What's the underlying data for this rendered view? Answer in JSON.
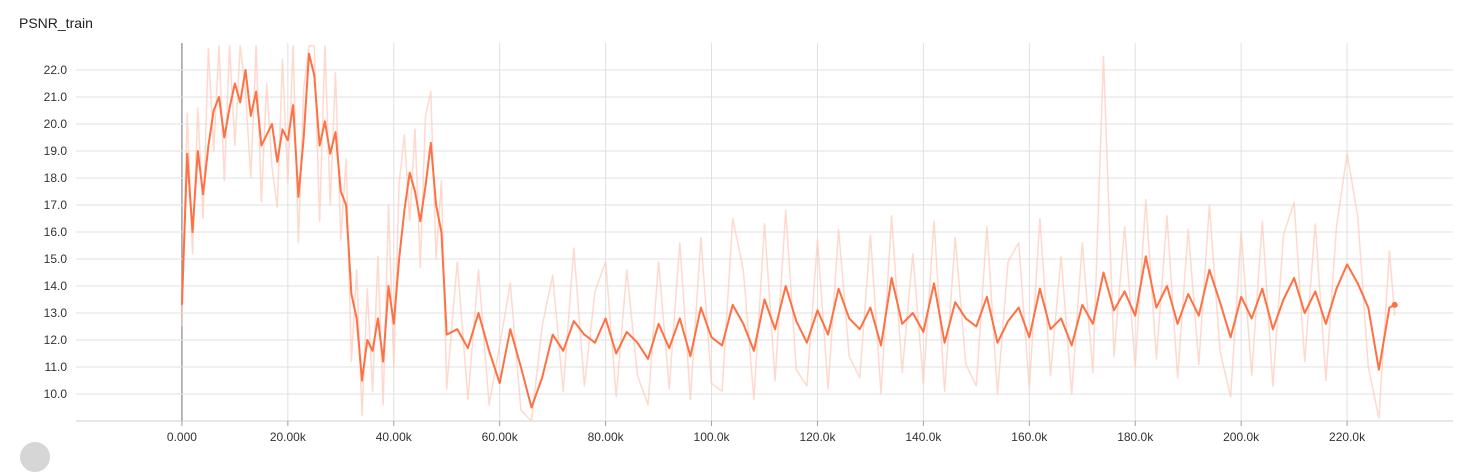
{
  "chart_data": {
    "type": "line",
    "title": "PSNR_train",
    "xlabel": "",
    "ylabel": "",
    "xlim": [
      -20000,
      240000
    ],
    "ylim": [
      9.0,
      23.0
    ],
    "grid": true,
    "x_ticks": [
      0,
      20000,
      40000,
      60000,
      80000,
      100000,
      120000,
      140000,
      160000,
      180000,
      200000,
      220000
    ],
    "x_tick_labels": [
      "0.000",
      "20.00k",
      "40.00k",
      "60.00k",
      "80.00k",
      "100.0k",
      "120.0k",
      "140.0k",
      "160.0k",
      "180.0k",
      "200.0k",
      "220.0k"
    ],
    "y_ticks": [
      10,
      11,
      12,
      13,
      14,
      15,
      16,
      17,
      18,
      19,
      20,
      21,
      22
    ],
    "y_tick_labels": [
      "10.0",
      "11.0",
      "12.0",
      "13.0",
      "14.0",
      "15.0",
      "16.0",
      "17.0",
      "18.0",
      "19.0",
      "20.0",
      "21.0",
      "22.0"
    ],
    "colors": {
      "smoothed": "#ff7043",
      "raw": "#ffccbc",
      "grid": "#e0e0e0",
      "origin_line": "#9e9e9e"
    },
    "series": [
      {
        "role": "smoothed",
        "x": [
          0,
          1000,
          2000,
          3000,
          4000,
          5000,
          6000,
          7000,
          8000,
          9000,
          10000,
          11000,
          12000,
          13000,
          14000,
          15000,
          16000,
          17000,
          18000,
          19000,
          20000,
          21000,
          22000,
          23000,
          24000,
          25000,
          26000,
          27000,
          28000,
          29000,
          30000,
          31000,
          32000,
          33000,
          34000,
          35000,
          36000,
          37000,
          38000,
          39000,
          40000,
          41000,
          42000,
          43000,
          44000,
          45000,
          46000,
          47000,
          48000,
          49000,
          50000,
          52000,
          54000,
          56000,
          58000,
          60000,
          62000,
          64000,
          66000,
          68000,
          70000,
          72000,
          74000,
          76000,
          78000,
          80000,
          82000,
          84000,
          86000,
          88000,
          90000,
          92000,
          94000,
          96000,
          98000,
          100000,
          102000,
          104000,
          106000,
          108000,
          110000,
          112000,
          114000,
          116000,
          118000,
          120000,
          122000,
          124000,
          126000,
          128000,
          130000,
          132000,
          134000,
          136000,
          138000,
          140000,
          142000,
          144000,
          146000,
          148000,
          150000,
          152000,
          154000,
          156000,
          158000,
          160000,
          162000,
          164000,
          166000,
          168000,
          170000,
          172000,
          174000,
          176000,
          178000,
          180000,
          182000,
          184000,
          186000,
          188000,
          190000,
          192000,
          194000,
          196000,
          198000,
          200000,
          202000,
          204000,
          206000,
          208000,
          210000,
          212000,
          214000,
          216000,
          218000,
          220000,
          222000,
          224000,
          226000,
          228000,
          229000
        ],
        "y": [
          13.3,
          18.9,
          16.0,
          19.0,
          17.4,
          19.2,
          20.5,
          21.0,
          19.5,
          20.6,
          21.5,
          20.8,
          22.0,
          20.3,
          21.2,
          19.2,
          19.6,
          20.0,
          18.6,
          19.8,
          19.4,
          20.7,
          17.3,
          19.5,
          22.6,
          21.8,
          19.2,
          20.1,
          18.9,
          19.7,
          17.5,
          17.0,
          13.7,
          12.8,
          10.5,
          12.0,
          11.6,
          12.8,
          11.2,
          14.0,
          12.6,
          15.0,
          16.8,
          18.2,
          17.5,
          16.4,
          17.7,
          19.3,
          17.0,
          16.0,
          12.2,
          12.4,
          11.7,
          13.0,
          11.6,
          10.4,
          12.4,
          11.0,
          9.5,
          10.6,
          12.2,
          11.6,
          12.7,
          12.2,
          11.9,
          12.8,
          11.5,
          12.3,
          11.9,
          11.3,
          12.6,
          11.7,
          12.8,
          11.4,
          13.2,
          12.1,
          11.8,
          13.3,
          12.6,
          11.6,
          13.5,
          12.4,
          14.0,
          12.7,
          11.9,
          13.1,
          12.2,
          13.9,
          12.8,
          12.4,
          13.2,
          11.8,
          14.3,
          12.6,
          13.0,
          12.3,
          14.1,
          11.9,
          13.4,
          12.8,
          12.5,
          13.6,
          11.9,
          12.7,
          13.2,
          12.1,
          13.9,
          12.4,
          12.8,
          11.8,
          13.3,
          12.6,
          14.5,
          13.1,
          13.8,
          12.9,
          15.1,
          13.2,
          14.0,
          12.6,
          13.7,
          12.9,
          14.6,
          13.4,
          12.1,
          13.6,
          12.8,
          13.9,
          12.4,
          13.5,
          14.3,
          13.0,
          13.8,
          12.6,
          13.9,
          14.8,
          14.1,
          13.2,
          10.9,
          13.2,
          13.3
        ]
      },
      {
        "role": "raw",
        "x": [
          0,
          1000,
          2000,
          3000,
          4000,
          5000,
          6000,
          7000,
          8000,
          9000,
          10000,
          11000,
          12000,
          13000,
          14000,
          15000,
          16000,
          17000,
          18000,
          19000,
          20000,
          21000,
          22000,
          23000,
          24000,
          25000,
          26000,
          27000,
          28000,
          29000,
          30000,
          31000,
          32000,
          33000,
          34000,
          35000,
          36000,
          37000,
          38000,
          39000,
          40000,
          41000,
          42000,
          43000,
          44000,
          45000,
          46000,
          47000,
          48000,
          49000,
          50000,
          52000,
          54000,
          56000,
          58000,
          60000,
          62000,
          64000,
          66000,
          68000,
          70000,
          72000,
          74000,
          76000,
          78000,
          80000,
          82000,
          84000,
          86000,
          88000,
          90000,
          92000,
          94000,
          96000,
          98000,
          100000,
          102000,
          104000,
          106000,
          108000,
          110000,
          112000,
          114000,
          116000,
          118000,
          120000,
          122000,
          124000,
          126000,
          128000,
          130000,
          132000,
          134000,
          136000,
          138000,
          140000,
          142000,
          144000,
          146000,
          148000,
          150000,
          152000,
          154000,
          156000,
          158000,
          160000,
          162000,
          164000,
          166000,
          168000,
          170000,
          172000,
          174000,
          176000,
          178000,
          180000,
          182000,
          184000,
          186000,
          188000,
          190000,
          192000,
          194000,
          196000,
          198000,
          200000,
          202000,
          204000,
          206000,
          208000,
          210000,
          212000,
          214000,
          216000,
          218000,
          220000,
          222000,
          224000,
          226000,
          228000,
          229000
        ],
        "y": [
          12.5,
          20.4,
          15.2,
          20.6,
          16.5,
          22.8,
          19.0,
          22.9,
          17.9,
          22.9,
          19.2,
          22.9,
          21.2,
          18.0,
          22.9,
          17.1,
          21.5,
          18.4,
          16.9,
          22.4,
          17.8,
          22.9,
          15.6,
          21.3,
          22.9,
          22.9,
          16.4,
          22.9,
          17.0,
          21.9,
          15.7,
          18.7,
          11.2,
          14.6,
          9.2,
          13.9,
          10.1,
          15.1,
          9.6,
          17.0,
          11.0,
          17.8,
          19.6,
          16.4,
          19.8,
          14.7,
          20.3,
          21.2,
          15.0,
          17.9,
          10.2,
          14.9,
          9.8,
          14.6,
          9.6,
          11.8,
          14.1,
          9.4,
          9.0,
          12.5,
          14.4,
          10.1,
          15.4,
          10.3,
          13.8,
          14.9,
          9.9,
          14.6,
          10.7,
          9.6,
          14.9,
          10.2,
          15.6,
          9.8,
          15.8,
          10.4,
          10.1,
          16.5,
          14.6,
          9.8,
          16.3,
          10.5,
          16.8,
          10.9,
          10.3,
          15.7,
          10.2,
          16.1,
          11.4,
          10.6,
          15.9,
          10.0,
          16.6,
          10.8,
          15.2,
          10.4,
          16.4,
          10.1,
          15.8,
          11.1,
          10.3,
          16.2,
          10.0,
          14.9,
          15.6,
          10.2,
          16.5,
          10.7,
          15.1,
          10.0,
          15.6,
          10.8,
          22.5,
          11.4,
          16.2,
          11.0,
          17.2,
          11.3,
          16.6,
          10.6,
          16.1,
          11.1,
          17.0,
          11.6,
          9.9,
          16.0,
          10.7,
          16.4,
          10.3,
          15.9,
          17.1,
          11.2,
          16.3,
          10.5,
          16.2,
          18.9,
          16.6,
          11.0,
          9.1,
          15.3,
          12.9
        ]
      }
    ]
  }
}
